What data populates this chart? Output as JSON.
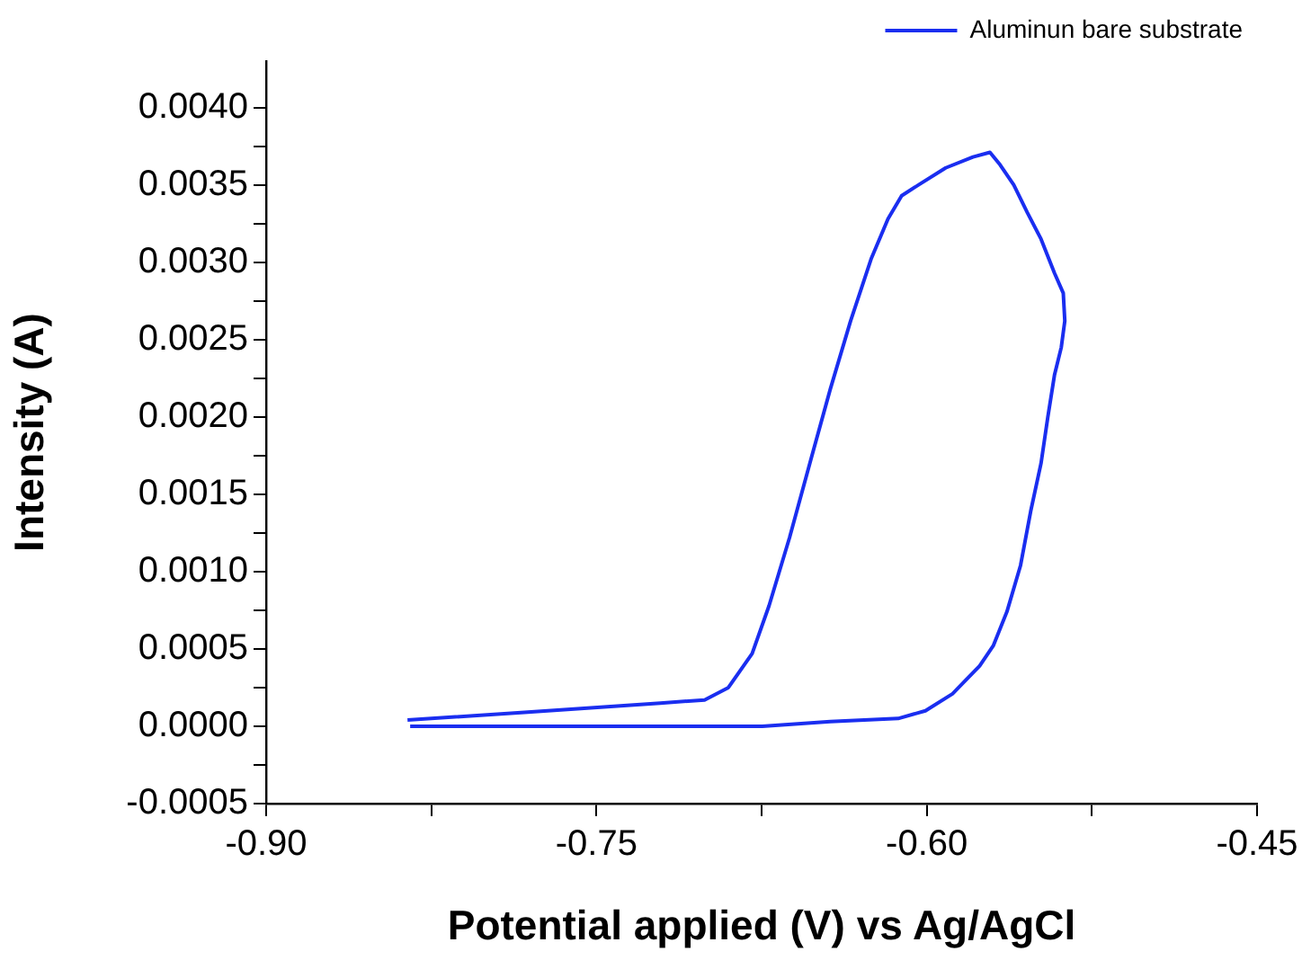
{
  "chart_data": {
    "type": "line",
    "xlabel": "Potential applied (V) vs Ag/AgCl",
    "ylabel": "Intensity (A)",
    "xlim": [
      -0.9,
      -0.45
    ],
    "ylim": [
      -0.0005,
      0.0043
    ],
    "xticks": [
      {
        "value": -0.9,
        "label": "-0.90"
      },
      {
        "value": -0.825,
        "label": null
      },
      {
        "value": -0.75,
        "label": "-0.75"
      },
      {
        "value": -0.675,
        "label": null
      },
      {
        "value": -0.6,
        "label": "-0.60"
      },
      {
        "value": -0.525,
        "label": null
      },
      {
        "value": -0.45,
        "label": "-0.45"
      }
    ],
    "yticks": [
      {
        "value": -0.0005,
        "label": "-0.0005"
      },
      {
        "value": -0.00025,
        "label": null
      },
      {
        "value": 0,
        "label": "0.0000"
      },
      {
        "value": 0.00025,
        "label": null
      },
      {
        "value": 0.0005,
        "label": "0.0005"
      },
      {
        "value": 0.00075,
        "label": null
      },
      {
        "value": 0.001,
        "label": "0.0010"
      },
      {
        "value": 0.00125,
        "label": null
      },
      {
        "value": 0.0015,
        "label": "0.0015"
      },
      {
        "value": 0.00175,
        "label": null
      },
      {
        "value": 0.002,
        "label": "0.0020"
      },
      {
        "value": 0.00225,
        "label": null
      },
      {
        "value": 0.0025,
        "label": "0.0025"
      },
      {
        "value": 0.00275,
        "label": null
      },
      {
        "value": 0.003,
        "label": "0.0030"
      },
      {
        "value": 0.00325,
        "label": null
      },
      {
        "value": 0.0035,
        "label": "0.0035"
      },
      {
        "value": 0.00375,
        "label": null
      },
      {
        "value": 0.004,
        "label": "0.0040"
      }
    ],
    "grid": false,
    "legend": "top right",
    "marker": "none",
    "line_style": "solid",
    "series": [
      {
        "name": "Aluminun bare substrate",
        "color": "#1a2ef0",
        "x": [
          -0.8346,
          -0.7519,
          -0.6747,
          -0.6438,
          -0.613,
          -0.6006,
          -0.5883,
          -0.576,
          -0.5698,
          -0.5636,
          -0.5574,
          -0.5528,
          -0.5481,
          -0.545,
          -0.542,
          -0.5389,
          -0.5373,
          -0.538,
          -0.542,
          -0.5481,
          -0.5543,
          -0.5605,
          -0.5667,
          -0.5713,
          -0.579,
          -0.5914,
          -0.6037,
          -0.6114,
          -0.6176,
          -0.6253,
          -0.6346,
          -0.6438,
          -0.6531,
          -0.6623,
          -0.6716,
          -0.6793,
          -0.6901,
          -0.7009,
          -0.721,
          -0.7827,
          -0.8358
        ],
        "values": [
          0,
          0,
          0,
          3e-05,
          5e-05,
          0.0001,
          0.00021,
          0.00039,
          0.00052,
          0.00074,
          0.00104,
          0.00139,
          0.0017,
          0.002,
          0.00227,
          0.00245,
          0.00262,
          0.0028,
          0.00293,
          0.00315,
          0.00332,
          0.0035,
          0.00363,
          0.00371,
          0.00368,
          0.00361,
          0.0035,
          0.00343,
          0.00328,
          0.00302,
          0.00262,
          0.00218,
          0.0017,
          0.00122,
          0.00078,
          0.00047,
          0.00025,
          0.00017,
          0.00015,
          9e-05,
          4e-05
        ]
      }
    ]
  }
}
